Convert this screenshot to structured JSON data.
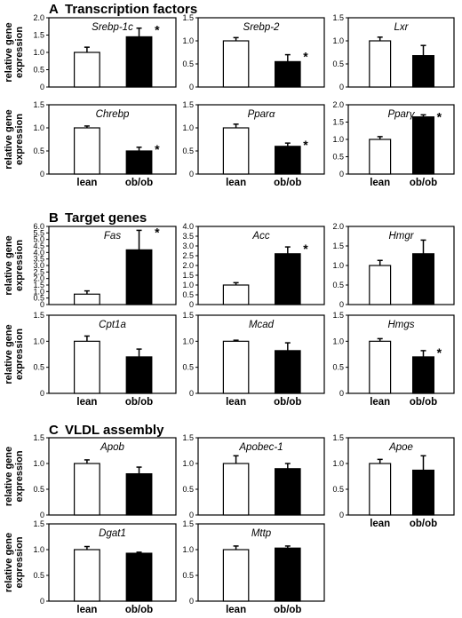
{
  "sections": [
    {
      "letter": "A",
      "title": "Transcription factors"
    },
    {
      "letter": "B",
      "title": "Target genes"
    },
    {
      "letter": "C",
      "title": "VLDL assembly"
    }
  ],
  "y_axis_label_line1": "relative gene",
  "y_axis_label_line2": "expression",
  "x_categories": [
    "lean",
    "ob/ob"
  ],
  "legend_colors": {
    "lean": "#ffffff",
    "ob/ob": "#000000"
  },
  "significance_marker": "*",
  "chart_data": [
    {
      "type": "bar",
      "section": "A",
      "title": "Srebp-1c",
      "categories": [
        "lean",
        "ob/ob"
      ],
      "values": [
        1.0,
        1.45
      ],
      "errors": [
        0.15,
        0.25
      ],
      "significant": [
        false,
        true
      ],
      "ylim": [
        0,
        2.0
      ],
      "yticks": [
        "0",
        "0.5",
        "1.0",
        "1.5",
        "2.0"
      ]
    },
    {
      "type": "bar",
      "section": "A",
      "title": "Srebp-2",
      "categories": [
        "lean",
        "ob/ob"
      ],
      "values": [
        1.0,
        0.55
      ],
      "errors": [
        0.07,
        0.15
      ],
      "significant": [
        false,
        true
      ],
      "ylim": [
        0,
        1.5
      ],
      "yticks": [
        "0",
        "0.5",
        "1.0",
        "1.5"
      ]
    },
    {
      "type": "bar",
      "section": "A",
      "title": "Lxr",
      "categories": [
        "lean",
        "ob/ob"
      ],
      "values": [
        1.0,
        0.68
      ],
      "errors": [
        0.08,
        0.22
      ],
      "significant": [
        false,
        false
      ],
      "ylim": [
        0,
        1.5
      ],
      "yticks": [
        "0",
        "0.5",
        "1.0",
        "1.5"
      ]
    },
    {
      "type": "bar",
      "section": "A",
      "title": "Chrebp",
      "categories": [
        "lean",
        "ob/ob"
      ],
      "values": [
        1.0,
        0.5
      ],
      "errors": [
        0.04,
        0.08
      ],
      "significant": [
        false,
        true
      ],
      "ylim": [
        0,
        1.5
      ],
      "yticks": [
        "0",
        "0.5",
        "1.0",
        "1.5"
      ]
    },
    {
      "type": "bar",
      "section": "A",
      "title": "Pparα",
      "categories": [
        "lean",
        "ob/ob"
      ],
      "values": [
        1.0,
        0.6
      ],
      "errors": [
        0.08,
        0.07
      ],
      "significant": [
        false,
        true
      ],
      "ylim": [
        0,
        1.5
      ],
      "yticks": [
        "0",
        "0.5",
        "1.0",
        "1.5"
      ]
    },
    {
      "type": "bar",
      "section": "A",
      "title": "Pparγ",
      "categories": [
        "lean",
        "ob/ob"
      ],
      "values": [
        1.0,
        1.65
      ],
      "errors": [
        0.08,
        0.06
      ],
      "significant": [
        false,
        true
      ],
      "ylim": [
        0,
        2.0
      ],
      "yticks": [
        "0",
        "0.5",
        "1.0",
        "1.5",
        "2.0"
      ]
    },
    {
      "type": "bar",
      "section": "B",
      "title": "Fas",
      "categories": [
        "lean",
        "ob/ob"
      ],
      "values": [
        0.8,
        4.2
      ],
      "errors": [
        0.25,
        1.5
      ],
      "significant": [
        false,
        true
      ],
      "ylim": [
        0,
        6.0
      ],
      "yticks": [
        "0",
        "0.5",
        "1.0",
        "1.5",
        "2.0",
        "2.5",
        "3.0",
        "3.5",
        "4.0",
        "4.5",
        "5.0",
        "5.5",
        "6.0"
      ]
    },
    {
      "type": "bar",
      "section": "B",
      "title": "Acc",
      "categories": [
        "lean",
        "ob/ob"
      ],
      "values": [
        1.0,
        2.6
      ],
      "errors": [
        0.12,
        0.35
      ],
      "significant": [
        false,
        true
      ],
      "ylim": [
        0,
        4.0
      ],
      "yticks": [
        "0",
        "0.5",
        "1.0",
        "1.5",
        "2.0",
        "2.5",
        "3.0",
        "3.5",
        "4.0"
      ]
    },
    {
      "type": "bar",
      "section": "B",
      "title": "Hmgr",
      "categories": [
        "lean",
        "ob/ob"
      ],
      "values": [
        1.0,
        1.3
      ],
      "errors": [
        0.13,
        0.35
      ],
      "significant": [
        false,
        false
      ],
      "ylim": [
        0,
        2.0
      ],
      "yticks": [
        "0",
        "0.5",
        "1.0",
        "1.5",
        "2.0"
      ]
    },
    {
      "type": "bar",
      "section": "B",
      "title": "Cpt1a",
      "categories": [
        "lean",
        "ob/ob"
      ],
      "values": [
        1.0,
        0.7
      ],
      "errors": [
        0.1,
        0.15
      ],
      "significant": [
        false,
        false
      ],
      "ylim": [
        0,
        1.5
      ],
      "yticks": [
        "0",
        "0.5",
        "1.0",
        "1.5"
      ]
    },
    {
      "type": "bar",
      "section": "B",
      "title": "Mcad",
      "categories": [
        "lean",
        "ob/ob"
      ],
      "values": [
        1.0,
        0.82
      ],
      "errors": [
        0.02,
        0.15
      ],
      "significant": [
        false,
        false
      ],
      "ylim": [
        0,
        1.5
      ],
      "yticks": [
        "0",
        "0.5",
        "1.0",
        "1.5"
      ]
    },
    {
      "type": "bar",
      "section": "B",
      "title": "Hmgs",
      "categories": [
        "lean",
        "ob/ob"
      ],
      "values": [
        1.0,
        0.7
      ],
      "errors": [
        0.05,
        0.12
      ],
      "significant": [
        false,
        true
      ],
      "ylim": [
        0,
        1.5
      ],
      "yticks": [
        "0",
        "0.5",
        "1.0",
        "1.5"
      ]
    },
    {
      "type": "bar",
      "section": "C",
      "title": "Apob",
      "categories": [
        "lean",
        "ob/ob"
      ],
      "values": [
        1.0,
        0.8
      ],
      "errors": [
        0.07,
        0.13
      ],
      "significant": [
        false,
        false
      ],
      "ylim": [
        0,
        1.5
      ],
      "yticks": [
        "0",
        "0.5",
        "1.0",
        "1.5"
      ]
    },
    {
      "type": "bar",
      "section": "C",
      "title": "Apobec-1",
      "categories": [
        "lean",
        "ob/ob"
      ],
      "values": [
        1.0,
        0.9
      ],
      "errors": [
        0.15,
        0.1
      ],
      "significant": [
        false,
        false
      ],
      "ylim": [
        0,
        1.5
      ],
      "yticks": [
        "0",
        "0.5",
        "1.0",
        "1.5"
      ]
    },
    {
      "type": "bar",
      "section": "C",
      "title": "Apoe",
      "categories": [
        "lean",
        "ob/ob"
      ],
      "values": [
        1.0,
        0.87
      ],
      "errors": [
        0.08,
        0.28
      ],
      "significant": [
        false,
        false
      ],
      "ylim": [
        0,
        1.5
      ],
      "yticks": [
        "0",
        "0.5",
        "1.0",
        "1.5"
      ]
    },
    {
      "type": "bar",
      "section": "C",
      "title": "Dgat1",
      "categories": [
        "lean",
        "ob/ob"
      ],
      "values": [
        1.0,
        0.93
      ],
      "errors": [
        0.06,
        0.02
      ],
      "significant": [
        false,
        false
      ],
      "ylim": [
        0,
        1.5
      ],
      "yticks": [
        "0",
        "0.5",
        "1.0",
        "1.5"
      ]
    },
    {
      "type": "bar",
      "section": "C",
      "title": "Mttp",
      "categories": [
        "lean",
        "ob/ob"
      ],
      "values": [
        1.0,
        1.03
      ],
      "errors": [
        0.07,
        0.04
      ],
      "significant": [
        false,
        false
      ],
      "ylim": [
        0,
        1.5
      ],
      "yticks": [
        "0",
        "0.5",
        "1.0",
        "1.5"
      ]
    }
  ]
}
